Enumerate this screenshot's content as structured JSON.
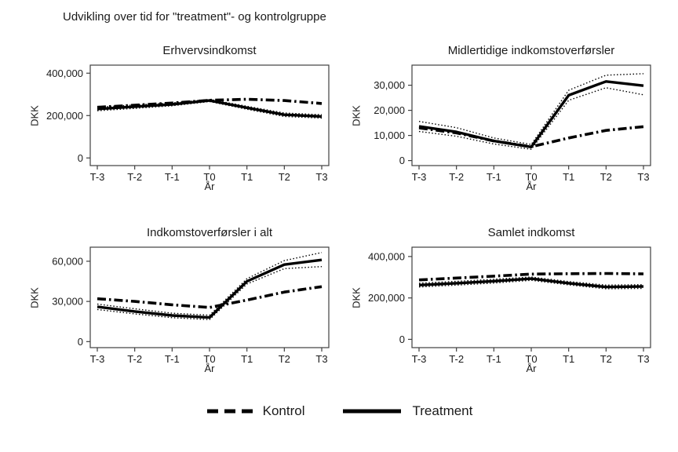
{
  "figure_title": "Udvikling over tid for \"treatment\"- og kontrolgruppe",
  "legend": {
    "kontrol_label": "Kontrol",
    "treatment_label": "Treatment"
  },
  "colors": {
    "line": "#000000",
    "frame": "#3f3f3f",
    "text": "#1a1a1a",
    "background": "#ffffff"
  },
  "chart_data": [
    {
      "type": "line",
      "title": "Erhvervsindkomst",
      "xlabel": "År",
      "ylabel": "DKK",
      "categories": [
        "T-3",
        "T-2",
        "T-1",
        "T0",
        "T1",
        "T2",
        "T3"
      ],
      "ylim": [
        -36000,
        438000
      ],
      "yticks": [
        0,
        200000,
        400000
      ],
      "ytick_labels": [
        "0",
        "200,000",
        "400,000"
      ],
      "grid": false,
      "series": [
        {
          "key": "kontrol",
          "name": "Kontrol",
          "style": "dashdot",
          "values": [
            239000,
            249000,
            259000,
            272000,
            277000,
            271000,
            257000
          ]
        },
        {
          "key": "treatment",
          "name": "Treatment",
          "style": "solid",
          "values": [
            231000,
            242000,
            253000,
            271000,
            237000,
            204000,
            196000
          ]
        },
        {
          "key": "ci_upper",
          "name": "Treatment CI upper",
          "style": "dotted",
          "values": [
            239000,
            250000,
            260000,
            276000,
            244000,
            212000,
            204000
          ]
        },
        {
          "key": "ci_lower",
          "name": "Treatment CI lower",
          "style": "dotted",
          "values": [
            223000,
            234000,
            246000,
            266000,
            230000,
            196000,
            188000
          ]
        }
      ]
    },
    {
      "type": "line",
      "title": "Midlertidige indkomstoverførsler",
      "xlabel": "År",
      "ylabel": "DKK",
      "categories": [
        "T-3",
        "T-2",
        "T-1",
        "T0",
        "T1",
        "T2",
        "T3"
      ],
      "ylim": [
        -2000,
        38000
      ],
      "yticks": [
        0,
        10000,
        20000,
        30000
      ],
      "ytick_labels": [
        "0",
        "10,000",
        "20,000",
        "30,000"
      ],
      "grid": false,
      "series": [
        {
          "key": "kontrol",
          "name": "Kontrol",
          "style": "dashdot",
          "values": [
            13000,
            11000,
            7800,
            5500,
            9000,
            12000,
            13500
          ]
        },
        {
          "key": "treatment",
          "name": "Treatment",
          "style": "solid",
          "values": [
            13600,
            11400,
            7800,
            5400,
            26000,
            31500,
            29800
          ]
        },
        {
          "key": "ci_upper",
          "name": "Treatment CI upper",
          "style": "dotted",
          "values": [
            15600,
            13100,
            9000,
            6400,
            28000,
            34000,
            34600
          ]
        },
        {
          "key": "ci_lower",
          "name": "Treatment CI lower",
          "style": "dotted",
          "values": [
            11600,
            9700,
            6600,
            4500,
            24000,
            29000,
            26200
          ]
        }
      ]
    },
    {
      "type": "line",
      "title": "Indkomstoverførsler i alt",
      "xlabel": "År",
      "ylabel": "DKK",
      "categories": [
        "T-3",
        "T-2",
        "T-1",
        "T0",
        "T1",
        "T2",
        "T3"
      ],
      "ylim": [
        -4500,
        70500
      ],
      "yticks": [
        0,
        30000,
        60000
      ],
      "ytick_labels": [
        "0",
        "30,000",
        "60,000"
      ],
      "grid": false,
      "series": [
        {
          "key": "kontrol",
          "name": "Kontrol",
          "style": "dashdot",
          "values": [
            32000,
            30000,
            27500,
            25500,
            31000,
            37000,
            41000
          ]
        },
        {
          "key": "treatment",
          "name": "Treatment",
          "style": "solid",
          "values": [
            26000,
            22500,
            19500,
            18000,
            45000,
            57500,
            61000
          ]
        },
        {
          "key": "ci_upper",
          "name": "Treatment CI upper",
          "style": "dotted",
          "values": [
            28000,
            24500,
            21200,
            19700,
            47000,
            60500,
            66500
          ]
        },
        {
          "key": "ci_lower",
          "name": "Treatment CI lower",
          "style": "dotted",
          "values": [
            24000,
            20700,
            17900,
            16400,
            43000,
            54500,
            56000
          ]
        }
      ]
    },
    {
      "type": "line",
      "title": "Samlet indkomst",
      "xlabel": "År",
      "ylabel": "DKK",
      "categories": [
        "T-3",
        "T-2",
        "T-1",
        "T0",
        "T1",
        "T2",
        "T3"
      ],
      "ylim": [
        -40000,
        445000
      ],
      "yticks": [
        0,
        200000,
        400000
      ],
      "ytick_labels": [
        "0",
        "200,000",
        "400,000"
      ],
      "grid": false,
      "series": [
        {
          "key": "kontrol",
          "name": "Kontrol",
          "style": "dashdot",
          "values": [
            287000,
            296000,
            305000,
            315000,
            317000,
            318000,
            316000
          ]
        },
        {
          "key": "treatment",
          "name": "Treatment",
          "style": "solid",
          "values": [
            262000,
            271000,
            281000,
            293000,
            271000,
            253000,
            255000
          ]
        },
        {
          "key": "ci_upper",
          "name": "Treatment CI upper",
          "style": "dotted",
          "values": [
            271000,
            280000,
            290000,
            301000,
            279000,
            262000,
            264000
          ]
        },
        {
          "key": "ci_lower",
          "name": "Treatment CI lower",
          "style": "dotted",
          "values": [
            253000,
            262000,
            272000,
            285000,
            263000,
            244000,
            246000
          ]
        }
      ]
    }
  ]
}
